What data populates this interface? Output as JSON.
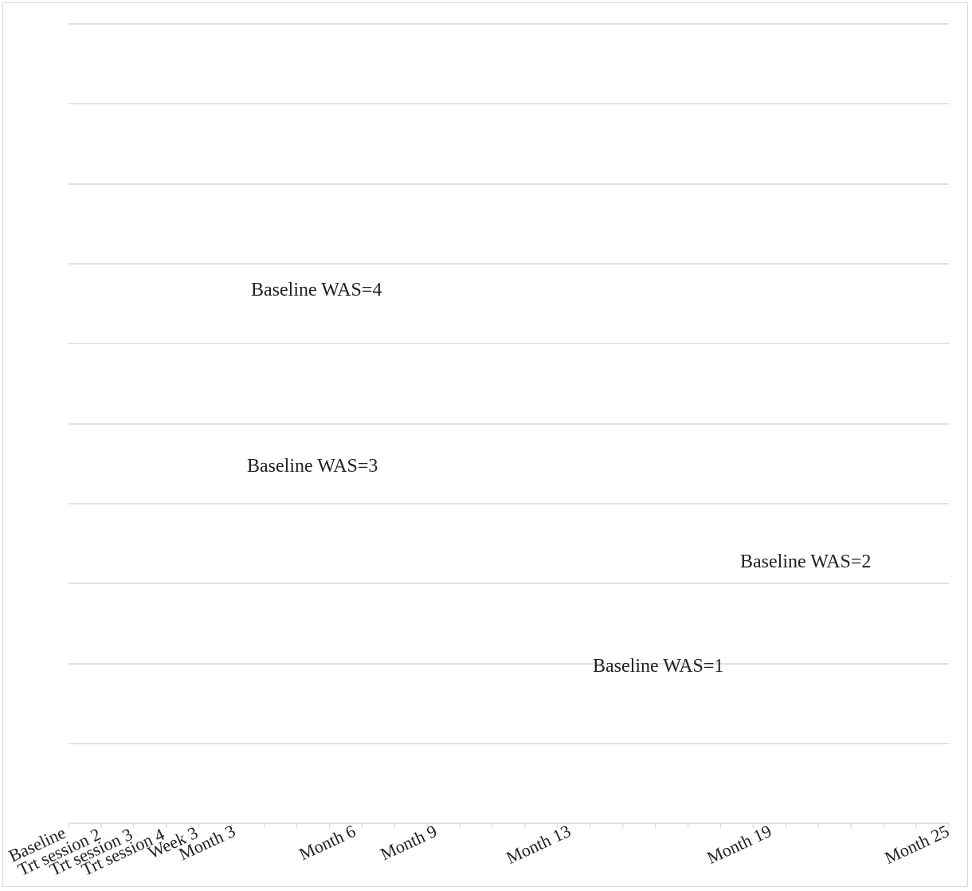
{
  "chart_data": {
    "type": "line",
    "title": "",
    "xlabel": "",
    "ylabel": "",
    "grid": true,
    "legend": "none",
    "categories": [
      "Baseline",
      "Trt session 2",
      "Trt session 3",
      "Trt session 4",
      "Week 3",
      "Month 3",
      "Month 6",
      "Month 9",
      "Month 13",
      "Month 19",
      "Month 25"
    ],
    "annotations": [
      {
        "label": "Baseline WAS=4"
      },
      {
        "label": "Baseline WAS=3"
      },
      {
        "label": "Baseline WAS=2"
      },
      {
        "label": "Baseline WAS=1"
      }
    ],
    "colors": {
      "grid": "#d9d9d9",
      "text": "#222222",
      "border": "#d9d9d9"
    }
  }
}
